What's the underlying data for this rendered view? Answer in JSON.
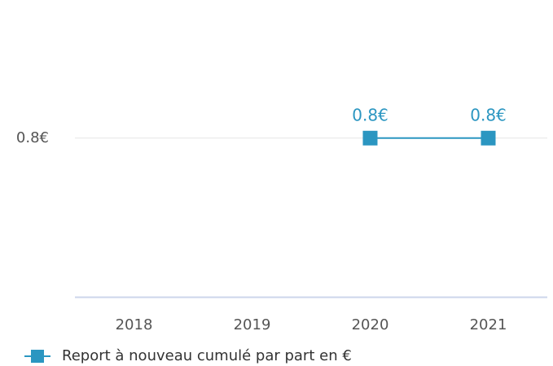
{
  "chart_data": {
    "type": "line",
    "categories": [
      "2018",
      "2019",
      "2020",
      "2021"
    ],
    "series": [
      {
        "name": "Report à nouveau cumulé par part en €",
        "color": "#2b96c1",
        "values": [
          null,
          null,
          0.8,
          0.8
        ],
        "value_labels": [
          null,
          null,
          "0.8€",
          "0.8€"
        ]
      }
    ],
    "ylim": [
      0,
      1
    ],
    "yticks": [
      {
        "value": 0.8,
        "label": "0.8€"
      }
    ],
    "grid": true,
    "legend": "bottom-left"
  }
}
